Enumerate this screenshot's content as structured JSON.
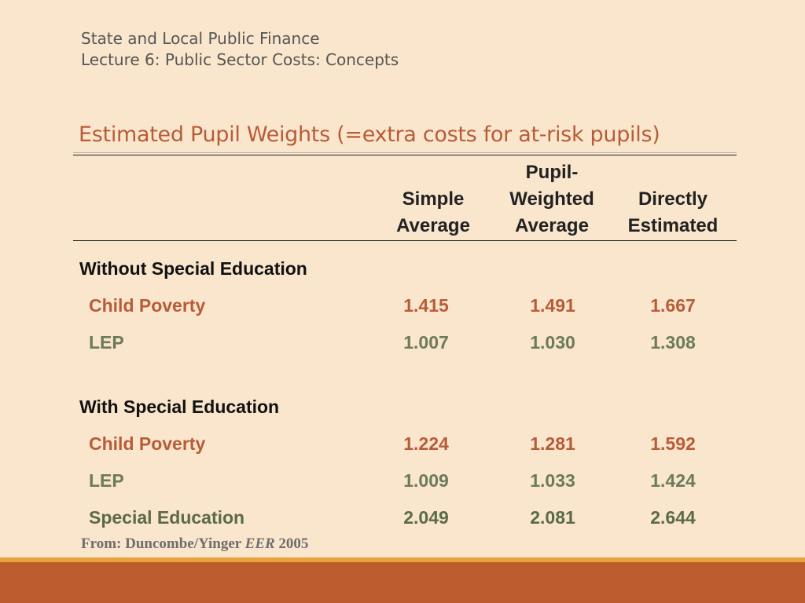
{
  "header": {
    "line1": "State and Local Public Finance",
    "line2": "Lecture 6:  Public Sector Costs: Concepts"
  },
  "title": "Estimated Pupil Weights (=extra costs for at-risk pupils)",
  "columns": [
    {
      "lines": [
        "Simple",
        "Average"
      ]
    },
    {
      "lines": [
        "Pupil-",
        "Weighted",
        "Average"
      ]
    },
    {
      "lines": [
        "Directly",
        "Estimated"
      ]
    }
  ],
  "sections": [
    {
      "heading": "Without Special Education",
      "rows": [
        {
          "label": "Child Poverty",
          "values": [
            "1.415",
            "1.491",
            "1.667"
          ]
        },
        {
          "label": "LEP",
          "values": [
            "1.007",
            "1.030",
            "1.308"
          ]
        }
      ]
    },
    {
      "heading": "With Special Education",
      "rows": [
        {
          "label": "Child Poverty",
          "values": [
            "1.224",
            "1.281",
            "1.592"
          ]
        },
        {
          "label": "LEP",
          "values": [
            "1.009",
            "1.033",
            "1.424"
          ]
        },
        {
          "label": "Special Education",
          "values": [
            "2.049",
            "2.081",
            "2.644"
          ]
        }
      ]
    }
  ],
  "source": {
    "prefix": "From: Duncombe/Yinger ",
    "journal": "EER",
    "year": " 2005"
  },
  "colors": {
    "background": "#f9e6cd",
    "accent": "#b85c38",
    "green": "#6b7a5b",
    "band_orange": "#e8a33d",
    "band_rust": "#bd5c2e"
  }
}
